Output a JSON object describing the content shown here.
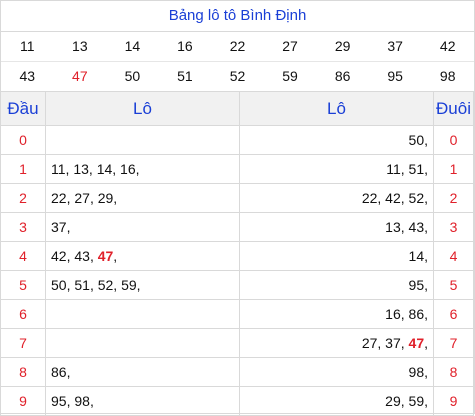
{
  "title": "Bảng lô tô Bình Định",
  "numbers_row1": [
    "11",
    "13",
    "14",
    "16",
    "22",
    "27",
    "29",
    "37",
    "42"
  ],
  "numbers_row2": [
    "43",
    "47",
    "50",
    "51",
    "52",
    "59",
    "86",
    "95",
    "98"
  ],
  "highlight_color": "#e0202a",
  "header": {
    "dau": "Đầu",
    "lo_left": "Lô",
    "lo_right": "Lô",
    "duoi": "Đuôi"
  },
  "rows": [
    {
      "dau": "0",
      "left": [],
      "right": [
        "50"
      ],
      "duoi": "0"
    },
    {
      "dau": "1",
      "left": [
        "11",
        "13",
        "14",
        "16"
      ],
      "right": [
        "11",
        "51"
      ],
      "duoi": "1"
    },
    {
      "dau": "2",
      "left": [
        "22",
        "27",
        "29"
      ],
      "right": [
        "22",
        "42",
        "52"
      ],
      "duoi": "2"
    },
    {
      "dau": "3",
      "left": [
        "37"
      ],
      "right": [
        "13",
        "43"
      ],
      "duoi": "3"
    },
    {
      "dau": "4",
      "left": [
        "42",
        "43",
        "47"
      ],
      "right": [
        "14"
      ],
      "duoi": "4"
    },
    {
      "dau": "5",
      "left": [
        "50",
        "51",
        "52",
        "59"
      ],
      "right": [
        "95"
      ],
      "duoi": "5"
    },
    {
      "dau": "6",
      "left": [],
      "right": [
        "16",
        "86"
      ],
      "duoi": "6"
    },
    {
      "dau": "7",
      "left": [],
      "right": [
        "27",
        "37",
        "47"
      ],
      "duoi": "7"
    },
    {
      "dau": "8",
      "left": [
        "86"
      ],
      "right": [
        "98"
      ],
      "duoi": "8"
    },
    {
      "dau": "9",
      "left": [
        "95",
        "98"
      ],
      "right": [
        "29",
        "59"
      ],
      "duoi": "9"
    }
  ],
  "highlighted_numbers": [
    "47"
  ]
}
